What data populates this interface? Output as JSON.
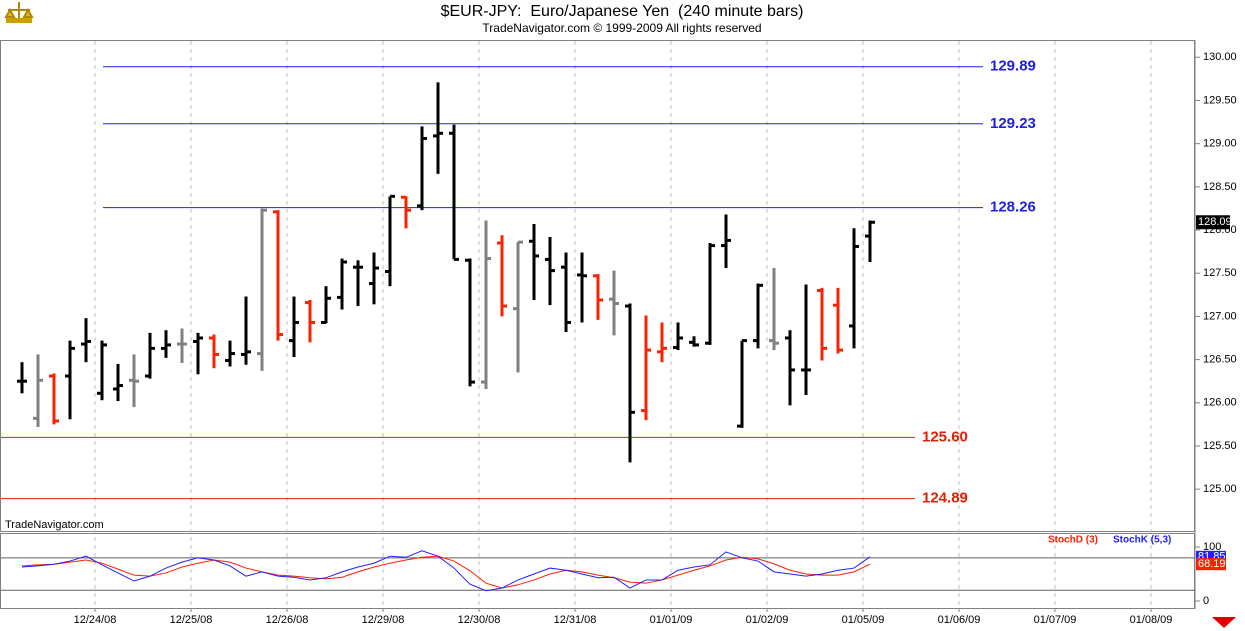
{
  "chart_data": [
    {
      "type": "ohlc",
      "title": "$EUR-JPY:  Euro/Japanese Yen  (240 minute bars)",
      "subtitle": "TradeNavigator.com © 1999-2009 All rights reserved",
      "watermark": "TradeNavigator.com",
      "open": [
        126.25,
        125.82,
        126.31,
        126.31,
        126.68,
        126.11,
        126.16,
        126.26,
        126.31,
        126.63,
        126.68,
        126.71,
        126.75,
        126.49,
        126.56,
        126.57,
        128.21,
        126.72,
        127.16,
        126.93,
        127.22,
        127.57,
        127.38,
        127.52,
        128.38,
        128.28,
        129.09,
        129.12,
        127.65,
        126.24,
        127.85,
        127.09,
        127.87,
        127.66,
        127.57,
        127.48,
        127.47,
        127.2,
        127.12,
        125.91,
        126.59,
        126.64,
        126.7,
        126.69,
        127.82,
        125.73,
        126.72,
        126.72,
        126.75,
        126.38,
        127.3,
        127.13,
        126.89,
        127.93
      ],
      "high": [
        126.47,
        126.56,
        126.34,
        126.72,
        126.98,
        126.72,
        126.45,
        126.56,
        126.81,
        126.84,
        126.86,
        126.81,
        126.79,
        126.72,
        127.23,
        128.25,
        128.23,
        127.23,
        127.19,
        127.35,
        127.67,
        127.65,
        127.74,
        128.39,
        128.39,
        129.2,
        129.71,
        129.22,
        127.67,
        128.11,
        127.94,
        127.86,
        128.07,
        127.92,
        127.74,
        127.74,
        127.49,
        127.53,
        127.15,
        127.01,
        126.93,
        126.93,
        126.77,
        127.85,
        128.18,
        126.72,
        127.38,
        127.56,
        126.84,
        127.37,
        127.33,
        127.33,
        128.02,
        128.11
      ],
      "low": [
        126.11,
        125.72,
        125.75,
        125.81,
        126.47,
        126.03,
        126.02,
        125.95,
        126.28,
        126.52,
        126.46,
        126.33,
        126.4,
        126.42,
        126.44,
        126.37,
        126.72,
        126.53,
        126.7,
        126.92,
        127.08,
        127.12,
        127.14,
        127.35,
        128.02,
        128.23,
        128.65,
        127.66,
        126.19,
        126.16,
        127.0,
        126.35,
        127.19,
        127.13,
        126.82,
        126.93,
        126.96,
        126.78,
        125.31,
        125.8,
        126.47,
        126.61,
        126.65,
        126.67,
        127.56,
        125.71,
        126.63,
        126.61,
        125.97,
        126.09,
        126.49,
        126.57,
        126.63,
        127.63
      ],
      "close": [
        126.25,
        126.26,
        125.79,
        126.63,
        126.71,
        126.67,
        126.2,
        126.25,
        126.63,
        126.67,
        126.68,
        126.75,
        126.56,
        126.57,
        126.59,
        128.23,
        126.79,
        126.93,
        126.93,
        127.21,
        127.63,
        127.57,
        127.56,
        128.39,
        128.23,
        129.06,
        129.12,
        127.66,
        126.24,
        127.67,
        127.12,
        127.86,
        127.7,
        127.53,
        126.93,
        127.47,
        127.19,
        127.15,
        125.89,
        126.61,
        126.63,
        126.75,
        126.67,
        127.82,
        127.88,
        126.72,
        127.36,
        126.69,
        126.38,
        126.38,
        126.63,
        126.61,
        127.81,
        128.09
      ],
      "bar_colors": [
        "#000000",
        "#808080",
        "#ff2000",
        "#000000",
        "#000000",
        "#000000",
        "#000000",
        "#808080",
        "#000000",
        "#000000",
        "#808080",
        "#000000",
        "#ff2000",
        "#000000",
        "#000000",
        "#808080",
        "#ff2000",
        "#000000",
        "#ff2000",
        "#000000",
        "#000000",
        "#000000",
        "#000000",
        "#000000",
        "#ff2000",
        "#000000",
        "#000000",
        "#000000",
        "#000000",
        "#808080",
        "#ff2000",
        "#808080",
        "#000000",
        "#000000",
        "#000000",
        "#000000",
        "#ff2000",
        "#808080",
        "#000000",
        "#ff2000",
        "#ff2000",
        "#000000",
        "#000000",
        "#000000",
        "#000000",
        "#000000",
        "#000000",
        "#808080",
        "#000000",
        "#000000",
        "#ff2000",
        "#ff2000",
        "#000000",
        "#000000"
      ],
      "ylim": [
        124.51,
        130.2
      ],
      "yticks": [
        {
          "value": 125,
          "label": "125.00"
        },
        {
          "value": 125.5,
          "label": "125.50"
        },
        {
          "value": 126,
          "label": "126.00"
        },
        {
          "value": 126.5,
          "label": "126.50"
        },
        {
          "value": 127,
          "label": "127.00"
        },
        {
          "value": 127.5,
          "label": "127.50"
        },
        {
          "value": 128,
          "label": "128.00"
        },
        {
          "value": 128.5,
          "label": "128.50"
        },
        {
          "value": 129,
          "label": "129.00"
        },
        {
          "value": 129.5,
          "label": "129.50"
        },
        {
          "value": 130,
          "label": "130.00"
        }
      ],
      "levels": [
        {
          "value": 129.89,
          "label": "129.89",
          "color": "#2020e0"
        },
        {
          "value": 129.23,
          "label": "129.23",
          "color": "#2020e0"
        },
        {
          "value": 128.26,
          "label": "128.26",
          "color": "#2020e0"
        },
        {
          "value": 125.6,
          "label": "125.60",
          "color": "#e02000"
        },
        {
          "value": 124.89,
          "label": "124.89",
          "color": "#e02000"
        }
      ],
      "x_tick_labels": [
        "12/24/08",
        "12/25/08",
        "12/26/08",
        "12/29/08",
        "12/30/08",
        "12/31/08",
        "01/01/09",
        "01/02/09",
        "01/05/09",
        "01/06/09",
        "01/07/09",
        "01/08/09"
      ]
    },
    {
      "type": "line",
      "ylim": [
        -13,
        126
      ],
      "yticks": [
        0,
        100
      ],
      "reference_lines": [
        20,
        80
      ],
      "series": [
        {
          "name": "StochD (3)",
          "color": "#ff2000",
          "values": [
            65,
            67,
            68,
            72,
            76,
            70,
            59,
            48,
            46,
            52,
            63,
            70,
            76,
            72,
            61,
            54,
            48,
            46,
            43,
            41,
            44,
            54,
            63,
            70,
            76,
            81,
            83,
            74,
            56,
            33,
            24,
            30,
            39,
            50,
            57,
            54,
            48,
            43,
            35,
            33,
            39,
            48,
            57,
            65,
            76,
            81,
            78,
            69,
            57,
            50,
            48,
            48,
            54,
            68.19
          ]
        },
        {
          "name": "StochK (5,3)",
          "color": "#2020ff",
          "values": [
            63,
            65,
            68,
            74,
            83,
            67,
            52,
            37,
            46,
            61,
            72,
            80,
            76,
            65,
            46,
            54,
            46,
            44,
            39,
            43,
            54,
            63,
            70,
            83,
            81,
            93,
            83,
            61,
            31,
            19,
            24,
            39,
            50,
            61,
            57,
            50,
            43,
            44,
            24,
            39,
            39,
            57,
            63,
            67,
            91,
            80,
            74,
            54,
            50,
            46,
            50,
            57,
            61,
            81.85
          ]
        }
      ]
    }
  ]
}
